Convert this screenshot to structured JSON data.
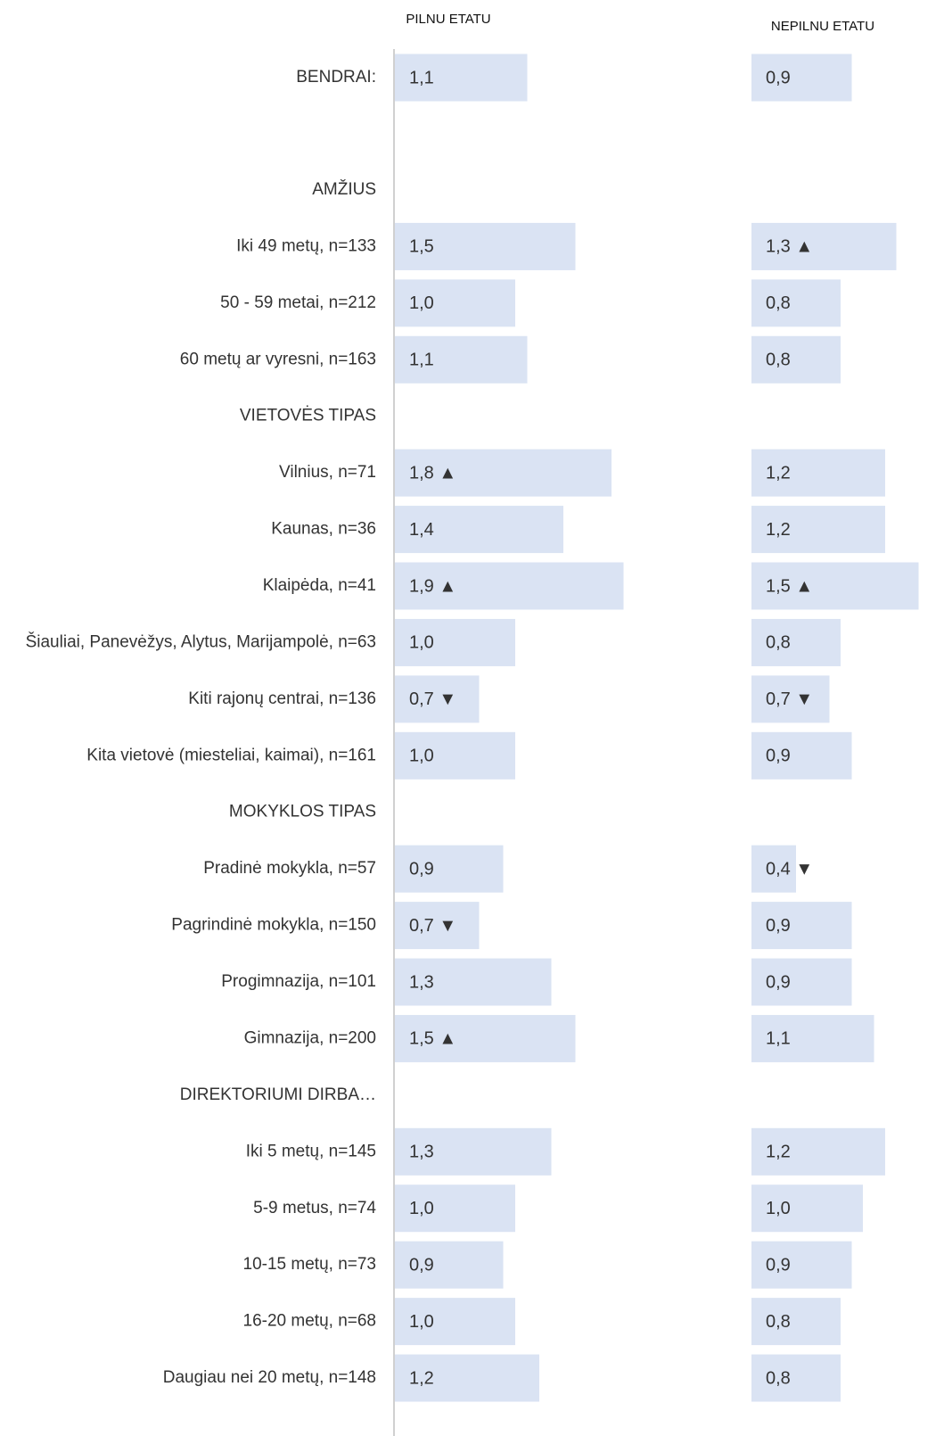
{
  "chart_data": {
    "type": "bar",
    "orientation": "horizontal",
    "categories": [
      "BENDRAI:",
      "AMŽIUS",
      "Iki 49 metų, n=133",
      "50 - 59 metai, n=212",
      "60 metų ar vyresni, n=163",
      "VIETOVĖS TIPAS",
      "Vilnius, n=71",
      "Kaunas, n=36",
      "Klaipėda, n=41",
      "Šiauliai, Panevėžys, Alytus, Marijampolė, n=63",
      "Kiti rajonų centrai, n=136",
      "Kita vietovė (miesteliai, kaimai), n=161",
      "MOKYKLOS TIPAS",
      "Pradinė mokykla, n=57",
      "Pagrindinė mokykla, n=150",
      "Progimnazija, n=101",
      "Gimnazija, n=200",
      "DIREKTORIUMI DIRBA…",
      "Iki 5 metų, n=145",
      "5-9 metus, n=74",
      "10-15 metų, n=73",
      "16-20 metų, n=68",
      "Daugiau nei 20 metų, n=148"
    ],
    "series": [
      {
        "name": "PILNU ETATU",
        "color": "#dae3f3",
        "values": [
          1.1,
          null,
          1.5,
          1.0,
          1.1,
          null,
          1.8,
          1.4,
          1.9,
          1.0,
          0.7,
          1.0,
          null,
          0.9,
          0.7,
          1.3,
          1.5,
          null,
          1.3,
          1.0,
          0.9,
          1.0,
          1.2
        ],
        "value_labels": [
          "1,1",
          null,
          "1,5",
          "1,0",
          "1,1",
          null,
          "1,8 ▲",
          "1,4",
          "1,9 ▲",
          "1,0",
          "0,7 ▼",
          "1,0",
          null,
          "0,9",
          "0,7 ▼",
          "1,3",
          "1,5 ▲",
          null,
          "1,3",
          "1,0",
          "0,9",
          "1,0",
          "1,2"
        ]
      },
      {
        "name": "NEPILNU ETATU",
        "color": "#dae3f3",
        "values": [
          0.9,
          null,
          1.3,
          0.8,
          0.8,
          null,
          1.2,
          1.2,
          1.5,
          0.8,
          0.7,
          0.9,
          null,
          0.4,
          0.9,
          0.9,
          1.1,
          null,
          1.2,
          1.0,
          0.9,
          0.8,
          0.8
        ],
        "value_labels": [
          "0,9",
          null,
          "1,3 ▲",
          "0,8",
          "0,8",
          null,
          "1,2",
          "1,2",
          "1,5 ▲",
          "0,8",
          "0,7 ▼",
          "0,9",
          null,
          "0,4 ▼",
          "0,9",
          "0,9",
          "1,1",
          null,
          "1,2",
          "1,0",
          "0,9",
          "0,8",
          "0,8"
        ]
      }
    ]
  }
}
